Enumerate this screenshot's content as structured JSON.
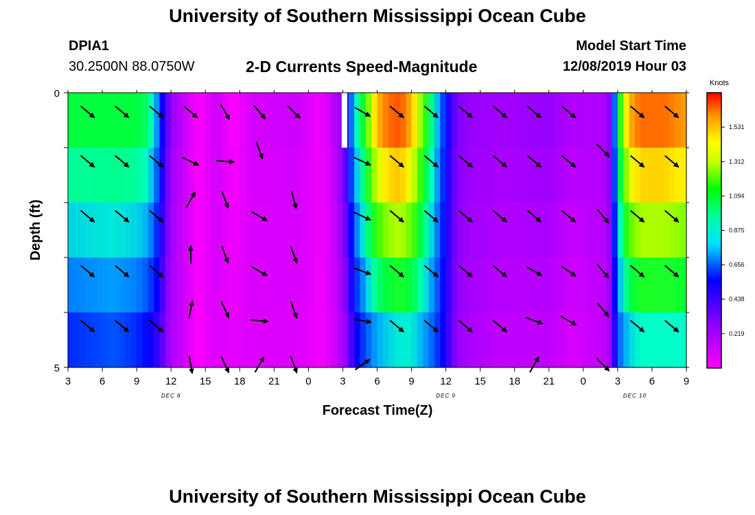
{
  "header": {
    "title": "University of Southern Mississippi Ocean Cube",
    "station_id": "DPIA1",
    "station_coords": "30.2500N 88.0750W",
    "plot_title": "2-D Currents Speed-Magnitude",
    "model_start_label": "Model Start Time",
    "model_start_value": "12/08/2019 Hour 03"
  },
  "footer": {
    "title": "University of Southern Mississippi Ocean Cube"
  },
  "chart_data": {
    "type": "heatmap",
    "xlabel": "Forecast Time(Z)",
    "ylabel": "Depth (ft)",
    "x_tick_labels": [
      "3",
      "6",
      "9",
      "12",
      "15",
      "18",
      "21",
      "0",
      "3",
      "6",
      "9",
      "12",
      "15",
      "18",
      "21",
      "0",
      "3",
      "6",
      "9"
    ],
    "x_hours": [
      0,
      3,
      6,
      9,
      12,
      15,
      18,
      21,
      24,
      27,
      30,
      33,
      36,
      39,
      42,
      45,
      48,
      51,
      54
    ],
    "date_labels": [
      {
        "label": "DEC 8",
        "hour": 9
      },
      {
        "label": "DEC 9",
        "hour": 33
      },
      {
        "label": "DEC 10",
        "hour": 49.5
      }
    ],
    "y_tick_labels": [
      "0",
      "5"
    ],
    "ylim": [
      0,
      5
    ],
    "depth_levels": 5,
    "colorbar": {
      "title": "Knots",
      "ticks": [
        "1.531",
        "1.312",
        "1.094",
        "0.875",
        "0.656",
        "0.438",
        "0.219"
      ],
      "tick_values": [
        1.531,
        1.312,
        1.094,
        0.875,
        0.656,
        0.438,
        0.219
      ],
      "min": 0,
      "max": 1.75
    },
    "speed_profile": {
      "hours": [
        0,
        4,
        6,
        7,
        8,
        8.5,
        9,
        10,
        11.5,
        12,
        13,
        14.5,
        16,
        20,
        21,
        22,
        23,
        24,
        25,
        26,
        27,
        28,
        29,
        30,
        31,
        32,
        33,
        34,
        35,
        38,
        42,
        44,
        47,
        47.5,
        48,
        49,
        50,
        51,
        52,
        53,
        54
      ],
      "surface": [
        0.95,
        0.95,
        0.95,
        0.9,
        0.6,
        0.4,
        0.25,
        0.15,
        0.0,
        0.05,
        0.12,
        0.0,
        0.1,
        0.12,
        0.08,
        0.03,
        0.12,
        0.3,
        0.75,
        1.05,
        1.45,
        1.6,
        1.65,
        1.45,
        1.1,
        0.8,
        0.5,
        0.3,
        0.25,
        0.22,
        0.25,
        0.18,
        0.2,
        0.35,
        0.9,
        1.45,
        1.6,
        1.6,
        1.6,
        1.55,
        1.5
      ],
      "bottom": [
        0.55,
        0.6,
        0.55,
        0.5,
        0.4,
        0.3,
        0.2,
        0.12,
        0.0,
        0.05,
        0.08,
        0.06,
        0.08,
        0.08,
        0.06,
        0.03,
        0.08,
        0.2,
        0.45,
        0.6,
        0.7,
        0.75,
        0.78,
        0.78,
        0.7,
        0.6,
        0.45,
        0.25,
        0.2,
        0.15,
        0.15,
        0.1,
        0.15,
        0.3,
        0.6,
        0.75,
        0.8,
        0.8,
        0.8,
        0.8,
        0.8
      ]
    },
    "arrows": [
      {
        "hour": 1,
        "depth": 0.2,
        "dir": 130
      },
      {
        "hour": 4,
        "depth": 0.2,
        "dir": 130
      },
      {
        "hour": 7,
        "depth": 0.2,
        "dir": 130
      },
      {
        "hour": 10,
        "depth": 0.2,
        "dir": 130
      },
      {
        "hour": 13,
        "depth": 0.2,
        "dir": 150
      },
      {
        "hour": 16,
        "depth": 0.2,
        "dir": 140
      },
      {
        "hour": 19,
        "depth": 0.2,
        "dir": 135
      },
      {
        "hour": 25,
        "depth": 0.2,
        "dir": 120
      },
      {
        "hour": 28,
        "depth": 0.2,
        "dir": 130
      },
      {
        "hour": 31,
        "depth": 0.2,
        "dir": 130
      },
      {
        "hour": 34,
        "depth": 0.2,
        "dir": 130
      },
      {
        "hour": 37,
        "depth": 0.2,
        "dir": 130
      },
      {
        "hour": 40,
        "depth": 0.2,
        "dir": 130
      },
      {
        "hour": 43,
        "depth": 0.2,
        "dir": 130
      },
      {
        "hour": 49,
        "depth": 0.2,
        "dir": 130
      },
      {
        "hour": 52,
        "depth": 0.2,
        "dir": 130
      },
      {
        "hour": 1,
        "depth": 1.1,
        "dir": 130
      },
      {
        "hour": 4,
        "depth": 1.1,
        "dir": 130
      },
      {
        "hour": 7,
        "depth": 1.1,
        "dir": 130
      },
      {
        "hour": 10,
        "depth": 1.1,
        "dir": 115
      },
      {
        "hour": 13,
        "depth": 1.1,
        "dir": 95
      },
      {
        "hour": 16,
        "depth": 0.9,
        "dir": 160
      },
      {
        "hour": 25,
        "depth": 1.1,
        "dir": 115
      },
      {
        "hour": 28,
        "depth": 1.1,
        "dir": 130
      },
      {
        "hour": 31,
        "depth": 1.1,
        "dir": 130
      },
      {
        "hour": 34,
        "depth": 1.1,
        "dir": 130
      },
      {
        "hour": 37,
        "depth": 1.1,
        "dir": 130
      },
      {
        "hour": 40,
        "depth": 1.1,
        "dir": 130
      },
      {
        "hour": 43,
        "depth": 1.1,
        "dir": 130
      },
      {
        "hour": 46,
        "depth": 0.9,
        "dir": 135
      },
      {
        "hour": 49,
        "depth": 1.1,
        "dir": 130
      },
      {
        "hour": 52,
        "depth": 1.1,
        "dir": 130
      },
      {
        "hour": 1,
        "depth": 2.1,
        "dir": 130
      },
      {
        "hour": 4,
        "depth": 2.1,
        "dir": 130
      },
      {
        "hour": 7,
        "depth": 2.1,
        "dir": 130
      },
      {
        "hour": 10,
        "depth": 1.8,
        "dir": 30
      },
      {
        "hour": 13,
        "depth": 1.8,
        "dir": 160
      },
      {
        "hour": 16,
        "depth": 2.1,
        "dir": 120
      },
      {
        "hour": 19,
        "depth": 1.8,
        "dir": 165
      },
      {
        "hour": 25,
        "depth": 2.1,
        "dir": 115
      },
      {
        "hour": 28,
        "depth": 2.1,
        "dir": 130
      },
      {
        "hour": 31,
        "depth": 2.1,
        "dir": 130
      },
      {
        "hour": 34,
        "depth": 2.1,
        "dir": 130
      },
      {
        "hour": 37,
        "depth": 2.1,
        "dir": 130
      },
      {
        "hour": 40,
        "depth": 2.1,
        "dir": 130
      },
      {
        "hour": 43,
        "depth": 2.1,
        "dir": 130
      },
      {
        "hour": 46,
        "depth": 2.1,
        "dir": 140
      },
      {
        "hour": 49,
        "depth": 2.1,
        "dir": 130
      },
      {
        "hour": 52,
        "depth": 2.1,
        "dir": 130
      },
      {
        "hour": 1,
        "depth": 3.1,
        "dir": 130
      },
      {
        "hour": 4,
        "depth": 3.1,
        "dir": 130
      },
      {
        "hour": 7,
        "depth": 3.1,
        "dir": 130
      },
      {
        "hour": 10,
        "depth": 2.8,
        "dir": 0
      },
      {
        "hour": 13,
        "depth": 2.8,
        "dir": 160
      },
      {
        "hour": 16,
        "depth": 3.1,
        "dir": 120
      },
      {
        "hour": 19,
        "depth": 2.8,
        "dir": 160
      },
      {
        "hour": 25,
        "depth": 3.1,
        "dir": 110
      },
      {
        "hour": 28,
        "depth": 3.1,
        "dir": 130
      },
      {
        "hour": 31,
        "depth": 3.1,
        "dir": 130
      },
      {
        "hour": 34,
        "depth": 3.1,
        "dir": 130
      },
      {
        "hour": 37,
        "depth": 3.1,
        "dir": 130
      },
      {
        "hour": 40,
        "depth": 3.1,
        "dir": 120
      },
      {
        "hour": 43,
        "depth": 3.1,
        "dir": 125
      },
      {
        "hour": 46,
        "depth": 3.1,
        "dir": 140
      },
      {
        "hour": 49,
        "depth": 3.1,
        "dir": 130
      },
      {
        "hour": 52,
        "depth": 3.1,
        "dir": 130
      },
      {
        "hour": 1,
        "depth": 4.1,
        "dir": 130
      },
      {
        "hour": 4,
        "depth": 4.1,
        "dir": 130
      },
      {
        "hour": 7,
        "depth": 4.1,
        "dir": 130
      },
      {
        "hour": 10,
        "depth": 3.8,
        "dir": 10
      },
      {
        "hour": 13,
        "depth": 3.8,
        "dir": 155
      },
      {
        "hour": 16,
        "depth": 4.0,
        "dir": 95
      },
      {
        "hour": 19,
        "depth": 3.8,
        "dir": 160
      },
      {
        "hour": 25,
        "depth": 4.0,
        "dir": 100
      },
      {
        "hour": 28,
        "depth": 4.1,
        "dir": 130
      },
      {
        "hour": 31,
        "depth": 4.1,
        "dir": 130
      },
      {
        "hour": 34,
        "depth": 4.1,
        "dir": 130
      },
      {
        "hour": 37,
        "depth": 4.1,
        "dir": 130
      },
      {
        "hour": 40,
        "depth": 4.0,
        "dir": 110
      },
      {
        "hour": 43,
        "depth": 4.0,
        "dir": 120
      },
      {
        "hour": 46,
        "depth": 3.8,
        "dir": 140
      },
      {
        "hour": 49,
        "depth": 4.1,
        "dir": 130
      },
      {
        "hour": 52,
        "depth": 4.1,
        "dir": 130
      },
      {
        "hour": 10,
        "depth": 4.8,
        "dir": 170
      },
      {
        "hour": 13,
        "depth": 4.8,
        "dir": 155
      },
      {
        "hour": 16,
        "depth": 4.8,
        "dir": 30
      },
      {
        "hour": 19,
        "depth": 4.8,
        "dir": 160
      },
      {
        "hour": 25,
        "depth": 4.8,
        "dir": 55
      },
      {
        "hour": 40,
        "depth": 4.8,
        "dir": 30
      },
      {
        "hour": 46,
        "depth": 4.8,
        "dir": 135
      }
    ]
  }
}
